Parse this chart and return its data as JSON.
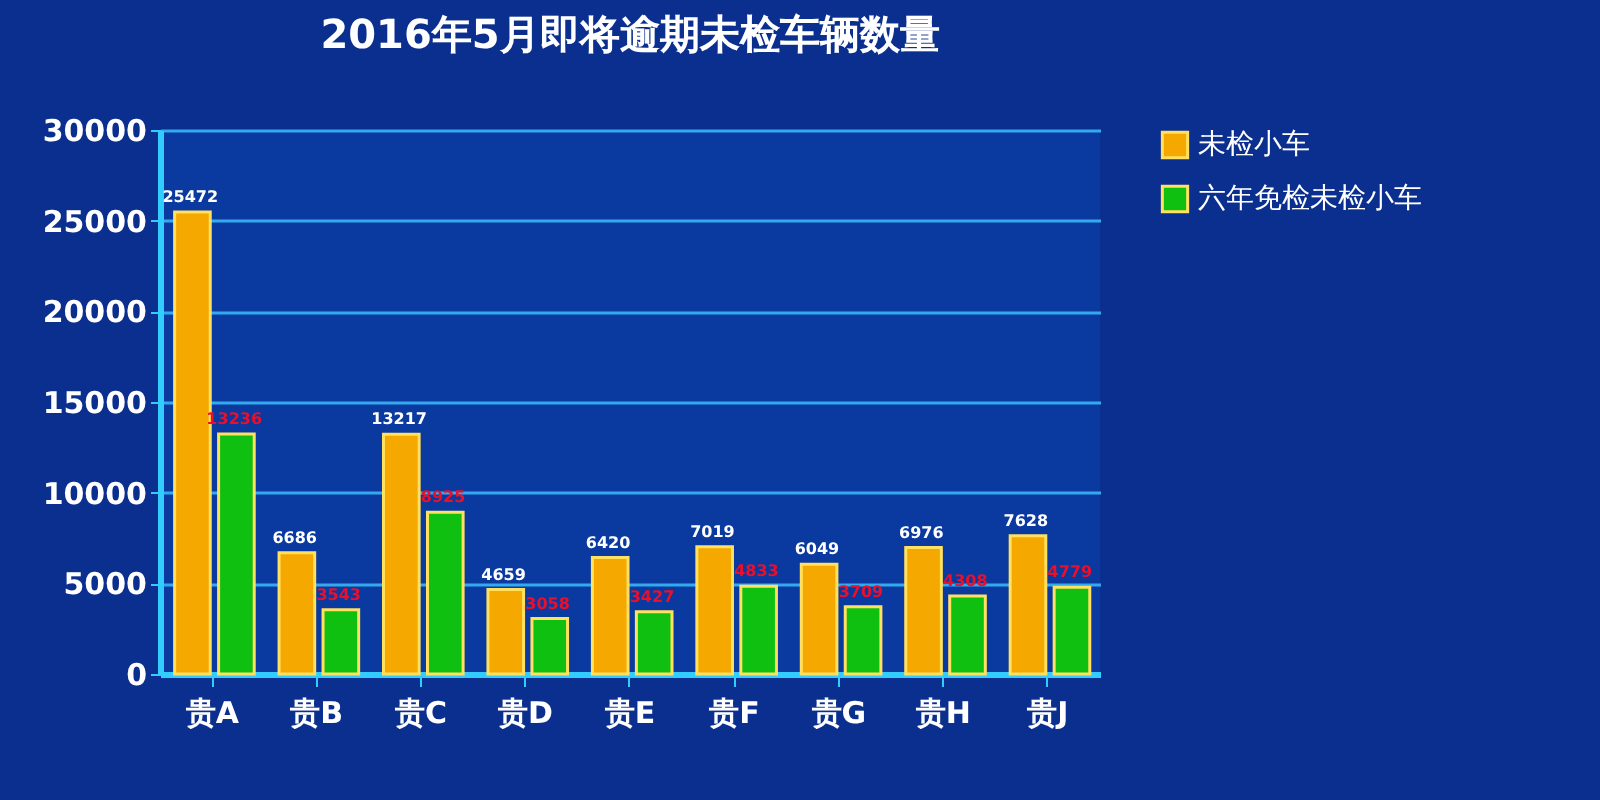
{
  "chart_data": {
    "type": "bar",
    "title": "2016年5月即将逾期未检车辆数量",
    "categories": [
      "贵A",
      "贵B",
      "贵C",
      "贵D",
      "贵E",
      "贵F",
      "贵G",
      "贵H",
      "贵J"
    ],
    "series": [
      {
        "name": "未检小车",
        "color": "#f5a800",
        "values": [
          25472,
          6686,
          13217,
          4659,
          6420,
          7019,
          6049,
          6976,
          7628
        ]
      },
      {
        "name": "六年免检未检小车",
        "color": "#10c010",
        "values": [
          13236,
          3543,
          8925,
          3058,
          3427,
          4833,
          3709,
          4308,
          4779
        ]
      }
    ],
    "ylim": [
      0,
      30000
    ],
    "yticks": [
      0,
      5000,
      10000,
      15000,
      20000,
      25000,
      30000
    ],
    "grid": "y",
    "legend": "right",
    "data_labels": true
  }
}
